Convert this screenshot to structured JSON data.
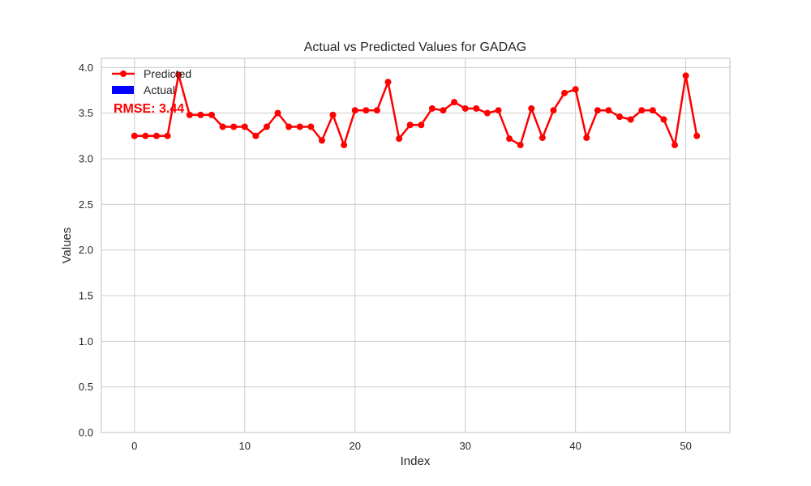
{
  "chart_data": {
    "type": "line",
    "title": "Actual vs Predicted Values for GADAG",
    "xlabel": "Index",
    "ylabel": "Values",
    "xlim": [
      -3,
      54
    ],
    "ylim": [
      0,
      4.1
    ],
    "xticks": [
      0,
      10,
      20,
      30,
      40,
      50
    ],
    "xtick_labels": [
      "0",
      "10",
      "20",
      "30",
      "40",
      "50"
    ],
    "yticks": [
      0,
      0.5,
      1,
      1.5,
      2,
      2.5,
      3,
      3.5,
      4
    ],
    "ytick_labels": [
      "0.0",
      "0.5",
      "1.0",
      "1.5",
      "2.0",
      "2.5",
      "3.0",
      "3.5",
      "4.0"
    ],
    "grid": true,
    "legend_position": "top-left",
    "series": [
      {
        "name": "Predicted",
        "color": "#ff0000",
        "marker": "circle",
        "x": [
          0,
          1,
          2,
          3,
          4,
          5,
          6,
          7,
          8,
          9,
          10,
          11,
          12,
          13,
          14,
          15,
          16,
          17,
          18,
          19,
          20,
          21,
          22,
          23,
          24,
          25,
          26,
          27,
          28,
          29,
          30,
          31,
          32,
          33,
          34,
          35,
          36,
          37,
          38,
          39,
          40,
          41,
          42,
          43,
          44,
          45,
          46,
          47,
          48,
          49,
          50,
          51
        ],
        "values": [
          3.25,
          3.25,
          3.25,
          3.25,
          3.92,
          3.48,
          3.48,
          3.48,
          3.35,
          3.35,
          3.35,
          3.25,
          3.35,
          3.5,
          3.35,
          3.35,
          3.35,
          3.2,
          3.48,
          3.15,
          3.53,
          3.53,
          3.53,
          3.84,
          3.22,
          3.37,
          3.37,
          3.55,
          3.53,
          3.62,
          3.55,
          3.55,
          3.5,
          3.53,
          3.22,
          3.15,
          3.55,
          3.23,
          3.53,
          3.72,
          3.76,
          3.23,
          3.53,
          3.53,
          3.46,
          3.43,
          3.53,
          3.53,
          3.43,
          3.15,
          3.91,
          3.25
        ]
      },
      {
        "name": "Actual",
        "color": "#0000ff",
        "values": []
      }
    ],
    "annotation": {
      "text": "RMSE: 3.44",
      "color": "#ff0000"
    }
  }
}
